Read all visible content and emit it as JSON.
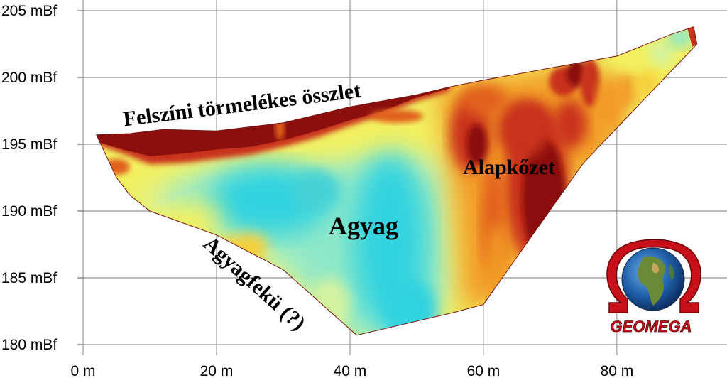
{
  "chart_data": {
    "type": "heatmap",
    "title": "",
    "xlabel": "",
    "ylabel": "",
    "x_ticks": [
      {
        "value": 0,
        "label": "0 m"
      },
      {
        "value": 20,
        "label": "20 m"
      },
      {
        "value": 40,
        "label": "40 m"
      },
      {
        "value": 60,
        "label": "60 m"
      },
      {
        "value": 80,
        "label": "80 m"
      }
    ],
    "y_ticks": [
      {
        "value": 205,
        "label": "205 mBf"
      },
      {
        "value": 200,
        "label": "200 mBf"
      },
      {
        "value": 195,
        "label": "195 mBf"
      },
      {
        "value": 190,
        "label": "190 mBf"
      },
      {
        "value": 185,
        "label": "185 mBf"
      },
      {
        "value": 180,
        "label": "180 mBf"
      }
    ],
    "xlim": [
      0,
      97
    ],
    "ylim": [
      179.5,
      205.5
    ],
    "grid": true,
    "section_outline": {
      "surface": [
        [
          2,
          195.7
        ],
        [
          7,
          195.8
        ],
        [
          12,
          196.1
        ],
        [
          20,
          196.0
        ],
        [
          30,
          196.6
        ],
        [
          40,
          197.8
        ],
        [
          50,
          198.7
        ],
        [
          55,
          199.3
        ],
        [
          60,
          199.8
        ],
        [
          70,
          200.7
        ],
        [
          80,
          201.6
        ],
        [
          88,
          203.2
        ],
        [
          91.5,
          203.8
        ]
      ],
      "base": [
        [
          91.5,
          203.8
        ],
        [
          92,
          202.5
        ],
        [
          75,
          193.6
        ],
        [
          60,
          183.0
        ],
        [
          55.5,
          182.4
        ],
        [
          41,
          180.7
        ],
        [
          30,
          185.6
        ],
        [
          20,
          188.2
        ],
        [
          10,
          190.0
        ],
        [
          7,
          191.2
        ],
        [
          5,
          192.5
        ],
        [
          2,
          195.7
        ]
      ]
    },
    "color_scale": [
      "#33d3e0",
      "#46d2d6",
      "#8ee8c8",
      "#d3f2a0",
      "#f2f060",
      "#f7cf3a",
      "#f29a26",
      "#e2601c",
      "#c9311a",
      "#8b0f0c"
    ],
    "zones": [
      {
        "label": "Felszíni törmelékes összlet",
        "x": 36,
        "y": 197.8,
        "resistivity": "very high"
      },
      {
        "label": "Alapkőzet",
        "x": 69,
        "y": 193.4,
        "resistivity": "high"
      },
      {
        "label": "Agyag",
        "x": 46.5,
        "y": 189.1,
        "resistivity": "low"
      },
      {
        "label": "Agyagfekü (?)",
        "x": 19.5,
        "y": 184.3,
        "resistivity": "medium"
      }
    ]
  },
  "logo": {
    "text": "GEOMEGA",
    "icon": "omega-globe-icon"
  }
}
